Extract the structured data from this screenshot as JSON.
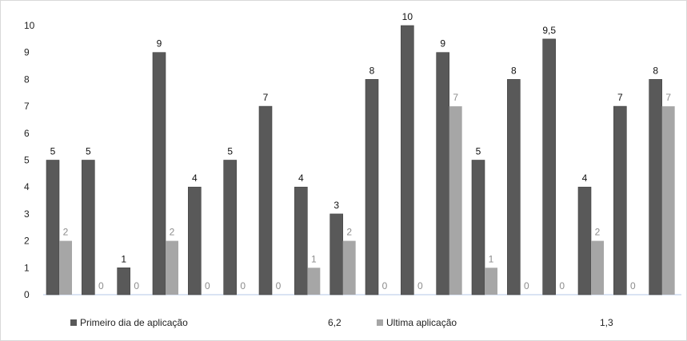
{
  "chart_data": {
    "type": "bar",
    "title": "",
    "xlabel": "",
    "ylabel": "",
    "ylim": [
      0,
      10
    ],
    "yticks": [
      0,
      1,
      2,
      3,
      4,
      5,
      6,
      7,
      8,
      9,
      10
    ],
    "grid": false,
    "legend_position": "bottom",
    "series": [
      {
        "name": "Primeiro dia de aplicação",
        "color": "#595959",
        "values": [
          5,
          5,
          1,
          9,
          4,
          5,
          7,
          4,
          3,
          8,
          10,
          9,
          5,
          8,
          9.5,
          4,
          7,
          8
        ],
        "labels": [
          "5",
          "5",
          "1",
          "9",
          "4",
          "5",
          "7",
          "4",
          "3",
          "8",
          "10",
          "9",
          "5",
          "8",
          "9,5",
          "4",
          "7",
          "8"
        ],
        "average_label": "6,2"
      },
      {
        "name": "Ultima aplicação",
        "color": "#a6a6a6",
        "values": [
          2,
          0,
          0,
          2,
          0,
          0,
          0,
          1,
          2,
          0,
          0,
          7,
          1,
          0,
          0,
          2,
          0,
          7
        ],
        "labels": [
          "2",
          "0",
          "0",
          "2",
          "0",
          "0",
          "0",
          "1",
          "2",
          "0",
          "0",
          "7",
          "1",
          "0",
          "0",
          "2",
          "0",
          "7"
        ],
        "average_label": "1,3"
      }
    ]
  }
}
